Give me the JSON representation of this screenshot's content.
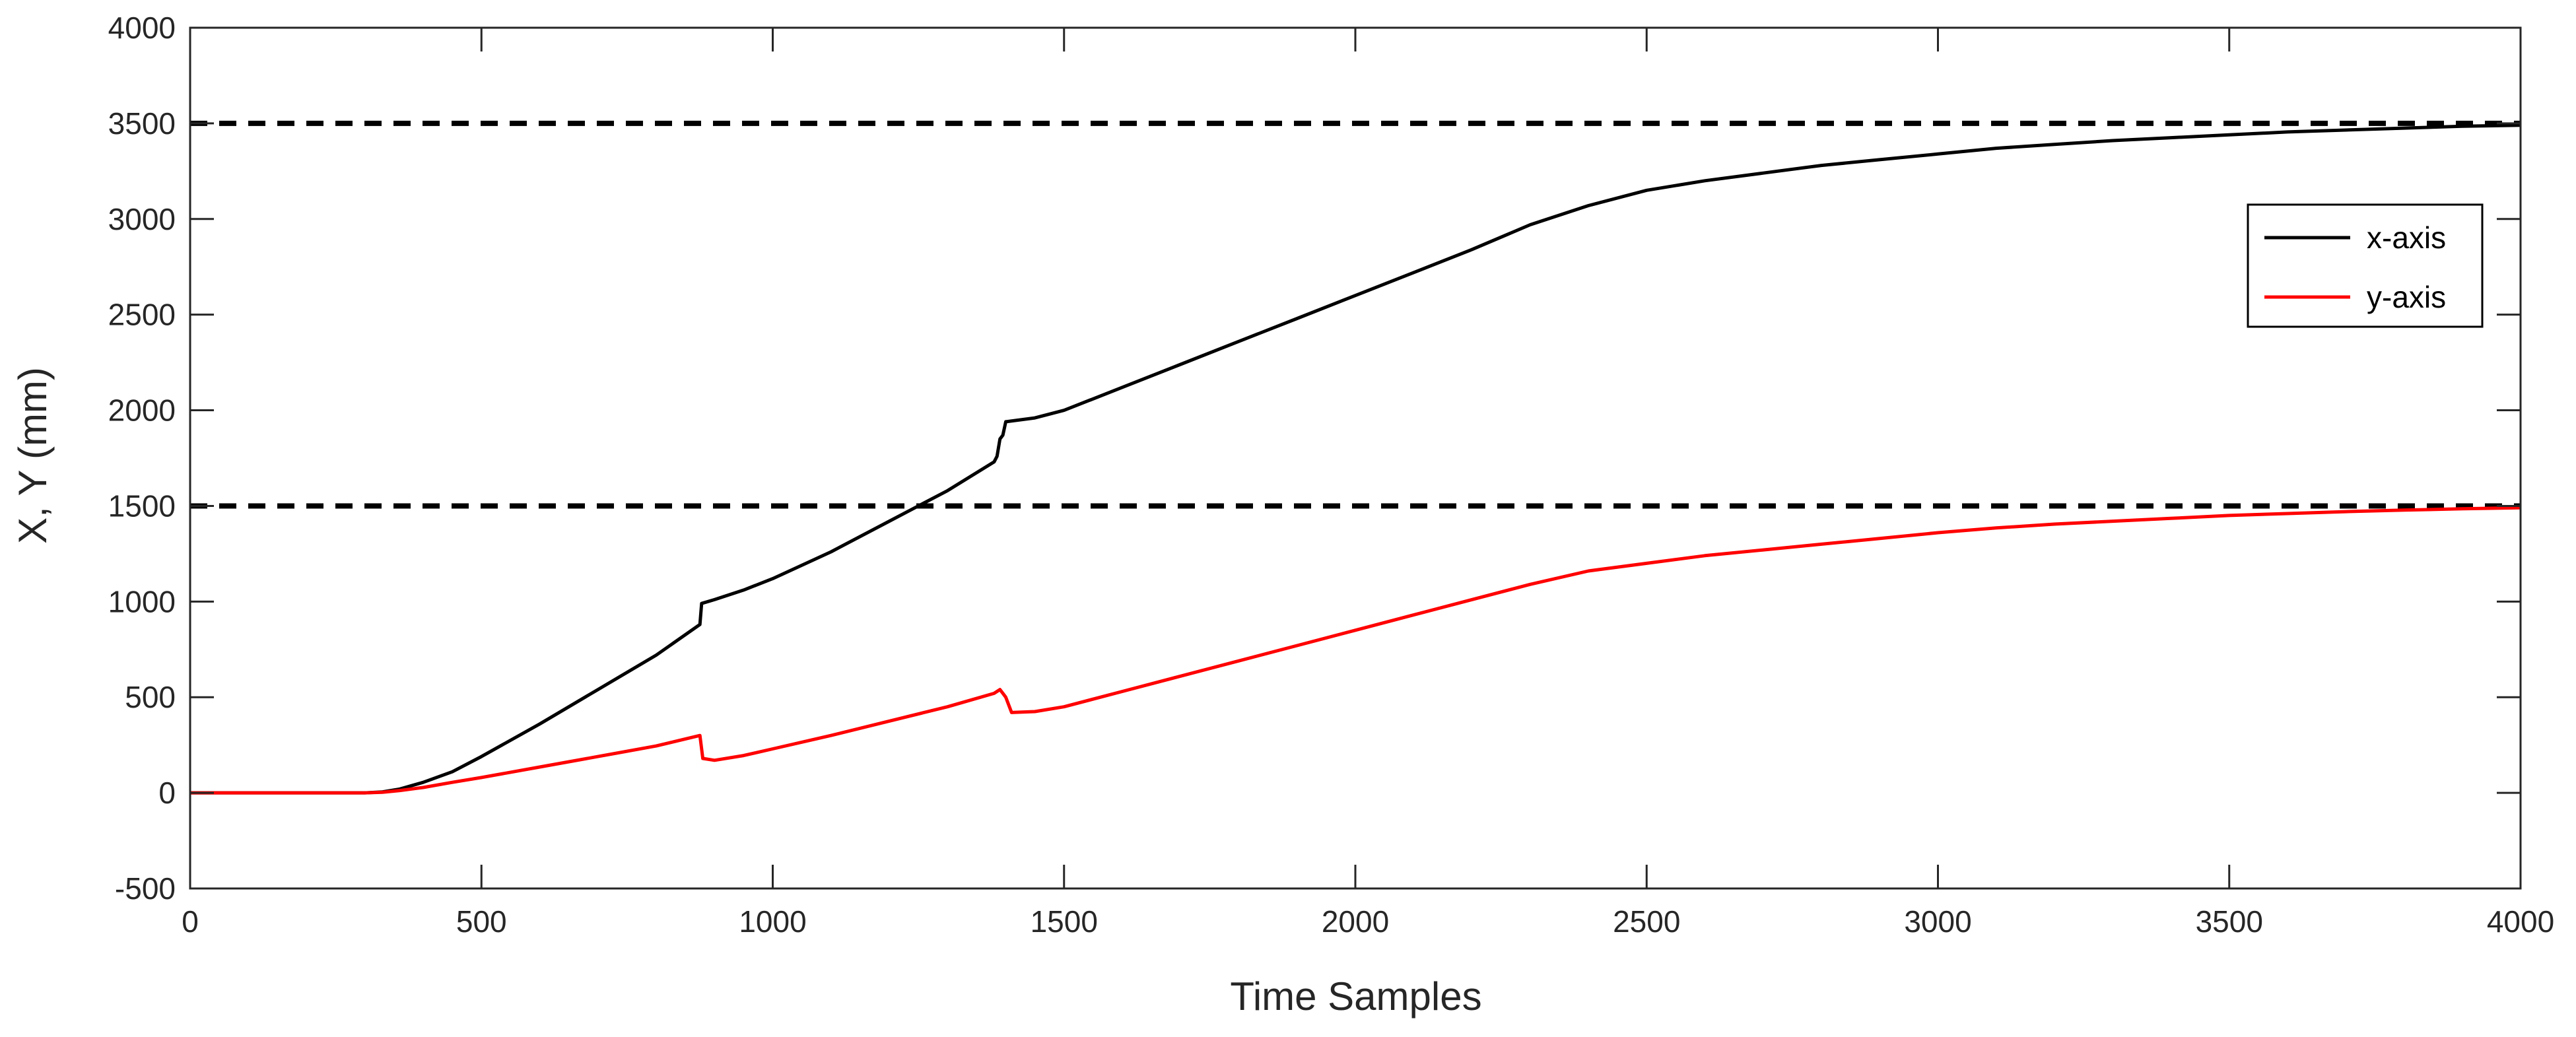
{
  "chart_data": {
    "type": "line",
    "title": "",
    "xlabel": "Time Samples",
    "ylabel": "X, Y (mm)",
    "xlim": [
      0,
      4000
    ],
    "ylim": [
      -500,
      4000
    ],
    "x_ticks": [
      0,
      500,
      1000,
      1500,
      2000,
      2500,
      3000,
      3500,
      4000
    ],
    "y_ticks": [
      -500,
      0,
      500,
      1000,
      1500,
      2000,
      2500,
      3000,
      3500,
      4000
    ],
    "grid": false,
    "legend_position": "right",
    "reference_lines": [
      {
        "y": 3500,
        "style": "dashed",
        "color": "#000000"
      },
      {
        "y": 1500,
        "style": "dashed",
        "color": "#000000"
      }
    ],
    "series": [
      {
        "name": "x-axis",
        "color": "#000000",
        "x": [
          0,
          300,
          330,
          360,
          400,
          450,
          500,
          600,
          700,
          800,
          875,
          878,
          900,
          950,
          1000,
          1100,
          1200,
          1300,
          1380,
          1385,
          1390,
          1395,
          1400,
          1450,
          1500,
          1600,
          1700,
          1800,
          1900,
          2000,
          2100,
          2200,
          2300,
          2400,
          2500,
          2600,
          2700,
          2800,
          2900,
          3000,
          3100,
          3200,
          3300,
          3400,
          3500,
          3600,
          3700,
          3800,
          3900,
          4000
        ],
        "y": [
          0,
          0,
          5,
          20,
          55,
          110,
          190,
          360,
          540,
          720,
          880,
          990,
          1010,
          1060,
          1120,
          1260,
          1420,
          1580,
          1730,
          1760,
          1850,
          1870,
          1940,
          1960,
          2000,
          2120,
          2240,
          2360,
          2480,
          2600,
          2720,
          2840,
          2970,
          3070,
          3150,
          3200,
          3240,
          3280,
          3310,
          3340,
          3370,
          3390,
          3410,
          3425,
          3440,
          3455,
          3465,
          3475,
          3485,
          3490
        ]
      },
      {
        "name": "y-axis",
        "color": "#ff0000",
        "x": [
          0,
          300,
          330,
          360,
          400,
          450,
          500,
          600,
          700,
          800,
          875,
          880,
          900,
          950,
          1000,
          1100,
          1200,
          1300,
          1380,
          1390,
          1400,
          1410,
          1450,
          1500,
          1600,
          1700,
          1800,
          1900,
          2000,
          2100,
          2200,
          2300,
          2400,
          2500,
          2600,
          2700,
          2800,
          2900,
          3000,
          3100,
          3200,
          3300,
          3400,
          3500,
          3600,
          3700,
          3800,
          3900,
          4000
        ],
        "y": [
          0,
          0,
          3,
          12,
          28,
          55,
          80,
          135,
          190,
          245,
          300,
          180,
          170,
          195,
          230,
          300,
          375,
          450,
          520,
          540,
          500,
          420,
          425,
          450,
          530,
          610,
          690,
          770,
          850,
          930,
          1010,
          1090,
          1160,
          1200,
          1240,
          1270,
          1300,
          1330,
          1360,
          1385,
          1405,
          1420,
          1435,
          1450,
          1460,
          1470,
          1478,
          1485,
          1490
        ]
      }
    ]
  }
}
